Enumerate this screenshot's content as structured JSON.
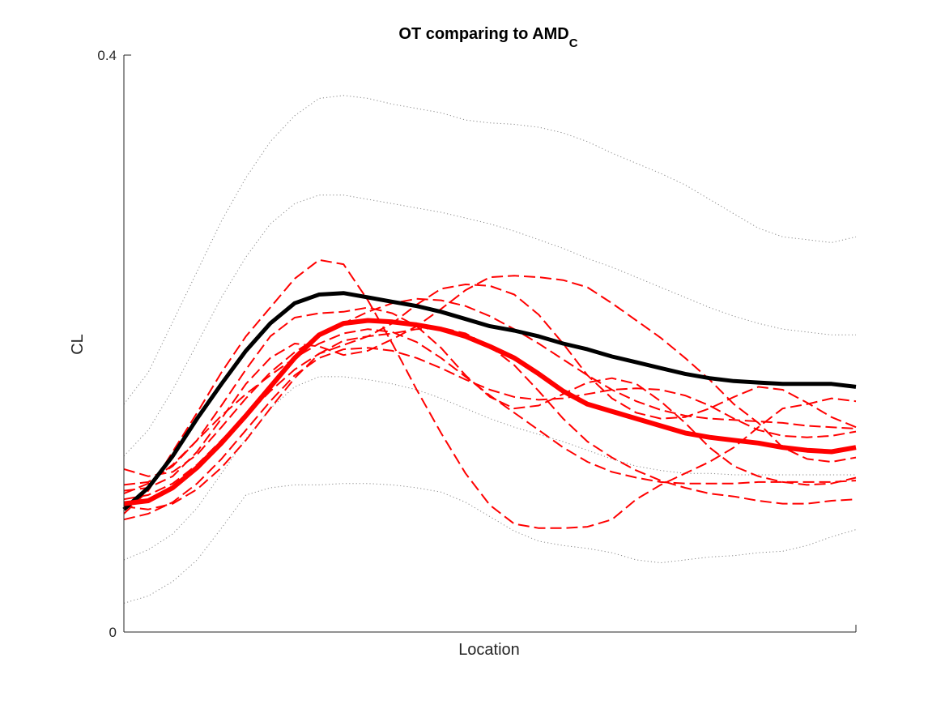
{
  "chart_data": {
    "type": "line",
    "title": "OT comparing to AMD",
    "title_subscript": "C",
    "xlabel": "Location",
    "ylabel": "CL",
    "ylim": [
      0,
      0.4
    ],
    "yticks": [
      "0",
      "0.4"
    ],
    "grid": false,
    "legend": "none",
    "x": [
      0,
      0.0333,
      0.0667,
      0.1,
      0.1333,
      0.1667,
      0.2,
      0.2333,
      0.2667,
      0.3,
      0.3333,
      0.3667,
      0.4,
      0.4333,
      0.4667,
      0.5,
      0.5333,
      0.5667,
      0.6,
      0.6333,
      0.6667,
      0.7,
      0.7333,
      0.7667,
      0.8,
      0.8333,
      0.8667,
      0.9,
      0.9333,
      0.9667,
      1.0
    ],
    "series": [
      {
        "role": "reference-mean",
        "color": "#000000",
        "style": "solid",
        "width": 5,
        "values": [
          0.085,
          0.1,
          0.122,
          0.148,
          0.172,
          0.195,
          0.214,
          0.228,
          0.234,
          0.235,
          0.232,
          0.229,
          0.226,
          0.222,
          0.217,
          0.212,
          0.209,
          0.205,
          0.2,
          0.196,
          0.191,
          0.187,
          0.183,
          0.179,
          0.176,
          0.174,
          0.173,
          0.172,
          0.172,
          0.172,
          0.17
        ]
      },
      {
        "role": "comparison-mean",
        "color": "#ff0000",
        "style": "solid",
        "width": 6,
        "values": [
          0.089,
          0.091,
          0.1,
          0.114,
          0.131,
          0.15,
          0.17,
          0.19,
          0.206,
          0.214,
          0.216,
          0.215,
          0.213,
          0.21,
          0.205,
          0.198,
          0.19,
          0.179,
          0.167,
          0.158,
          0.153,
          0.148,
          0.143,
          0.138,
          0.135,
          0.133,
          0.131,
          0.128,
          0.126,
          0.125,
          0.128
        ]
      },
      {
        "role": "individual",
        "color": "#ff0000",
        "style": "dashed",
        "width": 2,
        "values": [
          0.082,
          0.098,
          0.125,
          0.152,
          0.18,
          0.205,
          0.225,
          0.245,
          0.258,
          0.255,
          0.23,
          0.2,
          0.168,
          0.138,
          0.11,
          0.088,
          0.075,
          0.072,
          0.072,
          0.073,
          0.078,
          0.092,
          0.102,
          0.11,
          0.118,
          0.128,
          0.142,
          0.155,
          0.158,
          0.162,
          0.16
        ]
      },
      {
        "role": "individual",
        "color": "#ff0000",
        "style": "dashed",
        "width": 2,
        "values": [
          0.098,
          0.1,
          0.108,
          0.125,
          0.148,
          0.172,
          0.19,
          0.2,
          0.198,
          0.192,
          0.195,
          0.203,
          0.212,
          0.224,
          0.237,
          0.246,
          0.247,
          0.246,
          0.244,
          0.239,
          0.228,
          0.216,
          0.204,
          0.19,
          0.175,
          0.158,
          0.145,
          0.128,
          0.12,
          0.118,
          0.121
        ]
      },
      {
        "role": "individual",
        "color": "#ff0000",
        "style": "dashed",
        "width": 2,
        "values": [
          0.092,
          0.095,
          0.103,
          0.116,
          0.133,
          0.15,
          0.167,
          0.182,
          0.193,
          0.199,
          0.205,
          0.214,
          0.227,
          0.238,
          0.241,
          0.24,
          0.234,
          0.22,
          0.2,
          0.178,
          0.162,
          0.152,
          0.148,
          0.149,
          0.155,
          0.163,
          0.17,
          0.168,
          0.159,
          0.149,
          0.142
        ]
      },
      {
        "role": "individual",
        "color": "#ff0000",
        "style": "dashed",
        "width": 2,
        "values": [
          0.102,
          0.104,
          0.115,
          0.133,
          0.157,
          0.182,
          0.205,
          0.218,
          0.221,
          0.222,
          0.225,
          0.221,
          0.212,
          0.197,
          0.178,
          0.163,
          0.155,
          0.157,
          0.165,
          0.173,
          0.176,
          0.172,
          0.16,
          0.145,
          0.128,
          0.115,
          0.108,
          0.104,
          0.102,
          0.103,
          0.107
        ]
      },
      {
        "role": "individual",
        "color": "#ff0000",
        "style": "dashed",
        "width": 2,
        "values": [
          0.096,
          0.103,
          0.116,
          0.133,
          0.15,
          0.165,
          0.178,
          0.19,
          0.2,
          0.207,
          0.21,
          0.208,
          0.201,
          0.19,
          0.177,
          0.164,
          0.152,
          0.14,
          0.128,
          0.118,
          0.111,
          0.107,
          0.104,
          0.103,
          0.103,
          0.103,
          0.104,
          0.104,
          0.104,
          0.104,
          0.105
        ]
      },
      {
        "role": "individual",
        "color": "#ff0000",
        "style": "dashed",
        "width": 2,
        "values": [
          0.087,
          0.085,
          0.089,
          0.099,
          0.114,
          0.133,
          0.155,
          0.176,
          0.193,
          0.202,
          0.205,
          0.207,
          0.21,
          0.211,
          0.207,
          0.198,
          0.185,
          0.167,
          0.148,
          0.132,
          0.121,
          0.112,
          0.105,
          0.1,
          0.096,
          0.094,
          0.091,
          0.089,
          0.089,
          0.091,
          0.092
        ]
      },
      {
        "role": "individual",
        "color": "#ff0000",
        "style": "dashed",
        "width": 2,
        "values": [
          0.078,
          0.082,
          0.09,
          0.103,
          0.12,
          0.14,
          0.16,
          0.178,
          0.19,
          0.196,
          0.197,
          0.195,
          0.19,
          0.183,
          0.175,
          0.168,
          0.163,
          0.161,
          0.162,
          0.165,
          0.168,
          0.169,
          0.168,
          0.164,
          0.157,
          0.148,
          0.14,
          0.136,
          0.135,
          0.136,
          0.139
        ]
      },
      {
        "role": "individual",
        "color": "#ff0000",
        "style": "dashed",
        "width": 2,
        "values": [
          0.113,
          0.108,
          0.111,
          0.123,
          0.142,
          0.162,
          0.18,
          0.194,
          0.205,
          0.214,
          0.222,
          0.228,
          0.231,
          0.23,
          0.226,
          0.219,
          0.21,
          0.2,
          0.189,
          0.178,
          0.168,
          0.16,
          0.154,
          0.15,
          0.148,
          0.147,
          0.146,
          0.145,
          0.143,
          0.142,
          0.141
        ]
      },
      {
        "role": "band",
        "color": "#888888",
        "style": "dotted",
        "width": 1,
        "values": [
          0.158,
          0.18,
          0.215,
          0.25,
          0.285,
          0.315,
          0.34,
          0.358,
          0.37,
          0.372,
          0.37,
          0.366,
          0.363,
          0.36,
          0.355,
          0.353,
          0.352,
          0.35,
          0.346,
          0.34,
          0.332,
          0.325,
          0.318,
          0.31,
          0.3,
          0.29,
          0.28,
          0.274,
          0.272,
          0.27,
          0.274
        ]
      },
      {
        "role": "band",
        "color": "#888888",
        "style": "dotted",
        "width": 1,
        "values": [
          0.122,
          0.14,
          0.168,
          0.2,
          0.232,
          0.26,
          0.283,
          0.297,
          0.303,
          0.303,
          0.3,
          0.297,
          0.294,
          0.291,
          0.287,
          0.283,
          0.278,
          0.272,
          0.266,
          0.259,
          0.253,
          0.246,
          0.239,
          0.232,
          0.225,
          0.219,
          0.214,
          0.21,
          0.208,
          0.206,
          0.206
        ]
      },
      {
        "role": "band",
        "color": "#888888",
        "style": "dotted",
        "width": 1,
        "values": [
          0.05,
          0.057,
          0.068,
          0.086,
          0.11,
          0.134,
          0.155,
          0.17,
          0.177,
          0.177,
          0.175,
          0.172,
          0.168,
          0.162,
          0.155,
          0.148,
          0.142,
          0.137,
          0.132,
          0.126,
          0.12,
          0.115,
          0.112,
          0.11,
          0.11,
          0.109,
          0.109,
          0.109,
          0.109,
          0.109,
          0.109
        ]
      },
      {
        "role": "band",
        "color": "#888888",
        "style": "dotted",
        "width": 1,
        "values": [
          0.02,
          0.025,
          0.035,
          0.05,
          0.072,
          0.095,
          0.1,
          0.102,
          0.102,
          0.103,
          0.103,
          0.102,
          0.1,
          0.097,
          0.09,
          0.08,
          0.07,
          0.063,
          0.06,
          0.058,
          0.055,
          0.05,
          0.048,
          0.05,
          0.052,
          0.053,
          0.055,
          0.056,
          0.06,
          0.066,
          0.071
        ]
      }
    ]
  }
}
